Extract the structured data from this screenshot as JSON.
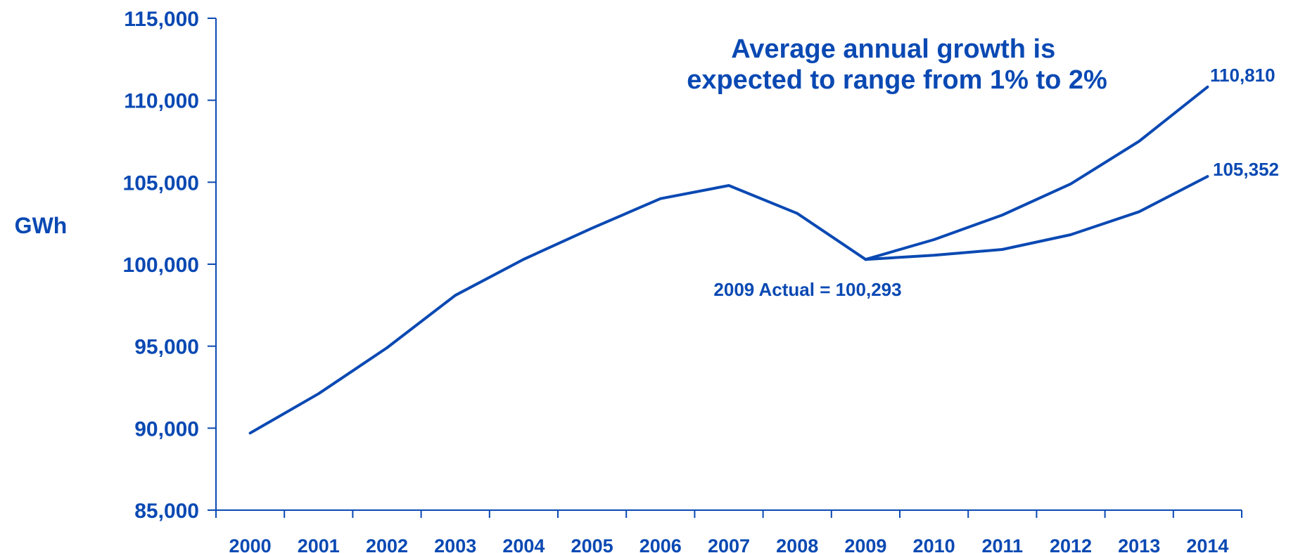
{
  "chart_data": {
    "type": "line",
    "title": "Average annual growth is expected to range from 1% to 2%",
    "title_lines": [
      "Average annual growth is",
      "expected to range from 1% to 2%"
    ],
    "xlabel": "",
    "ylabel": "GWh",
    "ylim": [
      85000,
      115000
    ],
    "yticks": [
      85000,
      90000,
      95000,
      100000,
      105000,
      110000,
      115000
    ],
    "ytick_labels": [
      "85,000",
      "90,000",
      "95,000",
      "100,000",
      "105,000",
      "110,000",
      "115,000"
    ],
    "categories": [
      "2000",
      "2001",
      "2002",
      "2003",
      "2004",
      "2005",
      "2006",
      "2007",
      "2008",
      "2009",
      "2010",
      "2011",
      "2012",
      "2013",
      "2014"
    ],
    "series": [
      {
        "values": [
          89700,
          92100,
          94900,
          98100,
          100300,
          102200,
          104000,
          104800,
          103100,
          100293,
          null,
          null,
          null,
          null,
          null
        ]
      },
      {
        "values": [
          null,
          null,
          null,
          null,
          null,
          null,
          null,
          null,
          null,
          100293,
          101500,
          103000,
          104900,
          107500,
          110810
        ]
      },
      {
        "values": [
          null,
          null,
          null,
          null,
          null,
          null,
          null,
          null,
          null,
          100293,
          100550,
          100900,
          101800,
          103200,
          105352
        ]
      }
    ],
    "annotations": [
      {
        "text": "2009 Actual = 100,293",
        "category": "2009"
      },
      {
        "text": "110,810",
        "category": "2014"
      },
      {
        "text": "105,352",
        "category": "2014"
      }
    ],
    "grid": false,
    "line_color": "#0a49b3"
  }
}
